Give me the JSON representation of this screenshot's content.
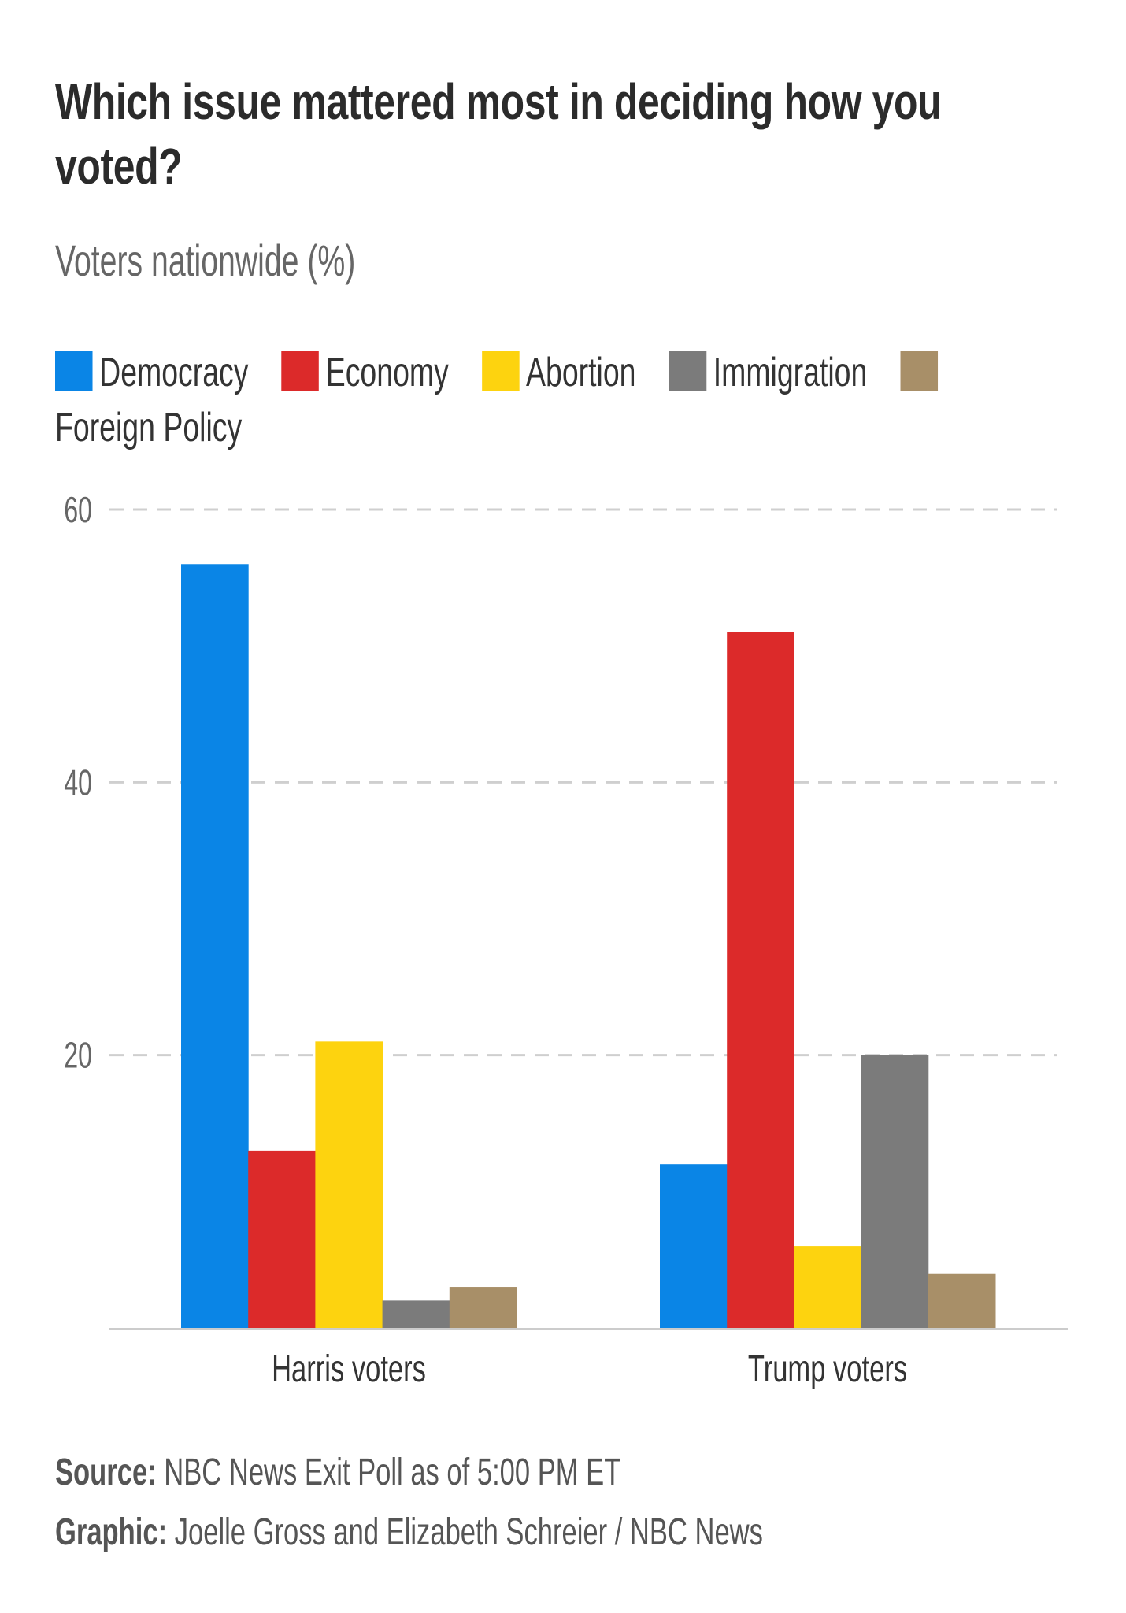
{
  "chart_data": {
    "type": "bar",
    "title": "Which issue mattered most in deciding how you voted?",
    "subtitle": "Voters nationwide (%)",
    "xlabel": "",
    "ylabel": "",
    "ylim": [
      0,
      60
    ],
    "yticks": [
      20,
      40,
      60
    ],
    "ytick_labels": [
      "20",
      "40",
      "60"
    ],
    "grid": true,
    "legend_position": "top-left",
    "categories": [
      "Harris voters",
      "Trump voters"
    ],
    "series": [
      {
        "name": "Democracy",
        "color": "#0a85e6",
        "values": [
          56,
          12
        ]
      },
      {
        "name": "Economy",
        "color": "#dc2a2a",
        "values": [
          13,
          51
        ]
      },
      {
        "name": "Abortion",
        "color": "#fdd30f",
        "values": [
          21,
          6
        ]
      },
      {
        "name": "Immigration",
        "color": "#7b7b7b",
        "values": [
          2,
          20
        ]
      },
      {
        "name": "Foreign Policy",
        "color": "#a88f68",
        "values": [
          3,
          4
        ]
      }
    ]
  },
  "legend": [
    {
      "label": "Democracy",
      "color": "#0a85e6"
    },
    {
      "label": "Economy",
      "color": "#dc2a2a"
    },
    {
      "label": "Abortion",
      "color": "#fdd30f"
    },
    {
      "label": "Immigration",
      "color": "#7b7b7b"
    },
    {
      "label": "Foreign Policy",
      "color": "#a88f68"
    }
  ],
  "footer": {
    "source_label": "Source:",
    "source_text": "NBC News Exit Poll as of 5:00 PM ET",
    "graphic_label": "Graphic:",
    "graphic_text": "Joelle Gross and Elizabeth Schreier / NBC News"
  }
}
